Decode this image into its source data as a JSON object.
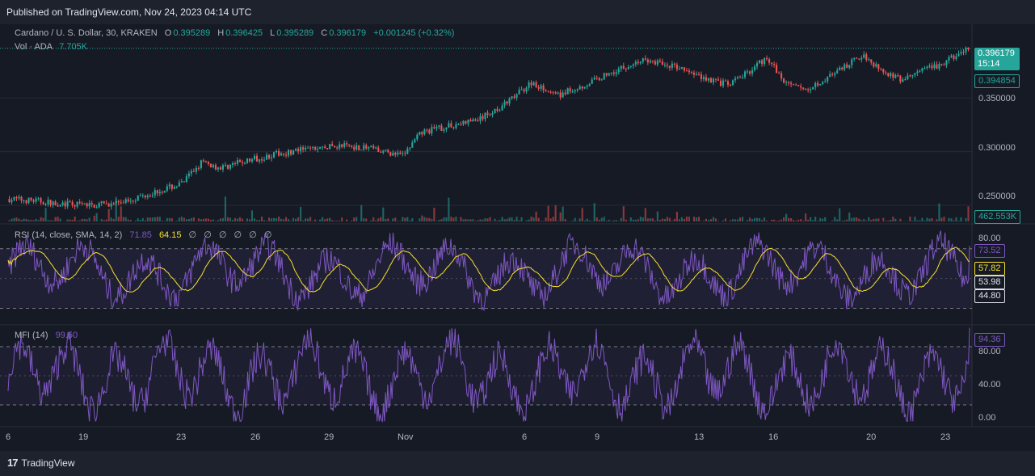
{
  "banner": {
    "text": "Published on TradingView.com, Nov 24, 2023 04:14 UTC"
  },
  "footer": {
    "logo_mark": "17",
    "brand": "TradingView"
  },
  "colors": {
    "up": "#26a69a",
    "down": "#ef5350",
    "rsi": "#7e57c2",
    "rsi_sma": "#f7e02b",
    "mfi": "#7e57c2",
    "bg": "#161a25",
    "grid": "#262b38"
  },
  "legend": {
    "symbol": "Cardano / U. S. Dollar, 30, KRAKEN",
    "o_label": "O",
    "o_value": "0.395289",
    "h_label": "H",
    "h_value": "0.396425",
    "l_label": "L",
    "l_value": "0.395289",
    "c_label": "C",
    "c_value": "0.396179",
    "change": "+0.001245 (+0.32%)",
    "vol_label": "Vol · ADA",
    "vol_value": "7.705K"
  },
  "rsi_legend": {
    "label": "RSI (14, close, SMA, 14, 2)",
    "rsi_value": "71.85",
    "sma_value": "64.15",
    "empty_values": [
      "∅",
      "∅",
      "∅",
      "∅",
      "∅",
      "∅"
    ]
  },
  "mfi_legend": {
    "label": "MFI (14)",
    "value": "99.50"
  },
  "price_axis": {
    "ticks": [
      "0.350000",
      "0.300000",
      "0.250000"
    ],
    "last_price": "0.396179",
    "countdown": "15:14",
    "prev_tag": "0.394854",
    "volume_tag": "462.553K"
  },
  "rsi_axis": {
    "ticks": [
      "80.00"
    ],
    "tags": [
      "73.52",
      "57.82",
      "53.98",
      "44.80"
    ]
  },
  "mfi_axis": {
    "ticks": [
      "80.00",
      "40.00",
      "0.00"
    ],
    "tag": "94.36"
  },
  "time_axis": [
    "6",
    "19",
    "23",
    "26",
    "29",
    "Nov",
    "6",
    "9",
    "13",
    "16",
    "20",
    "23"
  ],
  "chart_data": [
    {
      "type": "candlestick",
      "title": "Cardano / U. S. Dollar, 30, KRAKEN",
      "x_labels": [
        "6",
        "19",
        "23",
        "26",
        "29",
        "Nov",
        "6",
        "9",
        "13",
        "16",
        "20",
        "23"
      ],
      "y_range": [
        0.235,
        0.405
      ],
      "y_ticks": [
        0.25,
        0.3,
        0.35
      ],
      "close_path": [
        [
          0,
          0.256
        ],
        [
          0.03,
          0.254
        ],
        [
          0.06,
          0.251
        ],
        [
          0.09,
          0.25
        ],
        [
          0.12,
          0.254
        ],
        [
          0.15,
          0.262
        ],
        [
          0.18,
          0.27
        ],
        [
          0.2,
          0.29
        ],
        [
          0.22,
          0.285
        ],
        [
          0.25,
          0.292
        ],
        [
          0.28,
          0.298
        ],
        [
          0.31,
          0.302
        ],
        [
          0.35,
          0.306
        ],
        [
          0.38,
          0.302
        ],
        [
          0.41,
          0.296
        ],
        [
          0.43,
          0.318
        ],
        [
          0.46,
          0.324
        ],
        [
          0.49,
          0.33
        ],
        [
          0.52,
          0.346
        ],
        [
          0.545,
          0.365
        ],
        [
          0.57,
          0.352
        ],
        [
          0.6,
          0.362
        ],
        [
          0.63,
          0.375
        ],
        [
          0.66,
          0.385
        ],
        [
          0.69,
          0.38
        ],
        [
          0.72,
          0.37
        ],
        [
          0.75,
          0.362
        ],
        [
          0.77,
          0.374
        ],
        [
          0.79,
          0.388
        ],
        [
          0.81,
          0.362
        ],
        [
          0.83,
          0.358
        ],
        [
          0.86,
          0.372
        ],
        [
          0.89,
          0.39
        ],
        [
          0.91,
          0.376
        ],
        [
          0.93,
          0.366
        ],
        [
          0.95,
          0.375
        ],
        [
          0.97,
          0.38
        ],
        [
          0.985,
          0.388
        ],
        [
          1.0,
          0.396
        ]
      ],
      "last_value": 0.396179
    },
    {
      "type": "bar",
      "title": "Vol · ADA",
      "last_value": "7.705K",
      "axis_tag": "462.553K"
    },
    {
      "type": "line",
      "title": "RSI (14, close, SMA, 14, 2)",
      "y_range": [
        20,
        85
      ],
      "series": [
        {
          "name": "RSI",
          "last_value": 71.85
        },
        {
          "name": "SMA",
          "last_value": 64.15
        }
      ],
      "bands": [
        73.52,
        57.82,
        53.98,
        44.8
      ]
    },
    {
      "type": "line",
      "title": "MFI (14)",
      "y_range": [
        0,
        100
      ],
      "y_ticks": [
        80,
        40,
        0
      ],
      "series": [
        {
          "name": "MFI",
          "last_value": 99.5
        }
      ],
      "bands": [
        80,
        50,
        20
      ]
    }
  ]
}
